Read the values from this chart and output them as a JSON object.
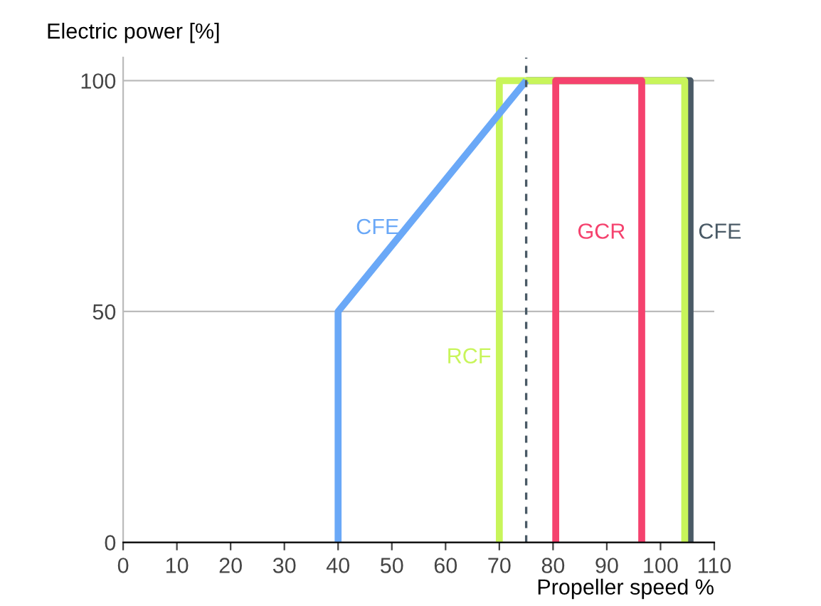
{
  "chart_data": {
    "type": "line",
    "xlabel": "Propeller speed %",
    "ylabel": "Electric power [%]",
    "series": [
      {
        "name": "CFE",
        "color": "#4a5a66",
        "x": [
          75,
          105.5,
          105.5
        ],
        "values": [
          100,
          100,
          0
        ]
      },
      {
        "name": "RCF",
        "color": "#c8f55a",
        "x": [
          70,
          70,
          104.5,
          104.5
        ],
        "values": [
          0,
          100,
          100,
          0
        ]
      },
      {
        "name": "GCR",
        "color": "#f5426e",
        "x": [
          80.5,
          80.5,
          96.5,
          96.5
        ],
        "values": [
          0,
          100,
          100,
          0
        ]
      },
      {
        "name": "CFE",
        "color": "#6aa8f7",
        "x": [
          40,
          40,
          75
        ],
        "values": [
          0,
          50,
          100
        ]
      }
    ],
    "ref_lines": [
      {
        "axis": "x",
        "value": 75,
        "color": "#4a5a66",
        "line_style": "dashed"
      }
    ],
    "xlim": [
      0,
      110
    ],
    "ylim": [
      0,
      105
    ],
    "xticks": [
      0,
      10,
      20,
      30,
      40,
      50,
      60,
      70,
      80,
      90,
      100,
      110
    ],
    "yticks": [
      0,
      50,
      100
    ],
    "grid": "y",
    "legend": false
  }
}
